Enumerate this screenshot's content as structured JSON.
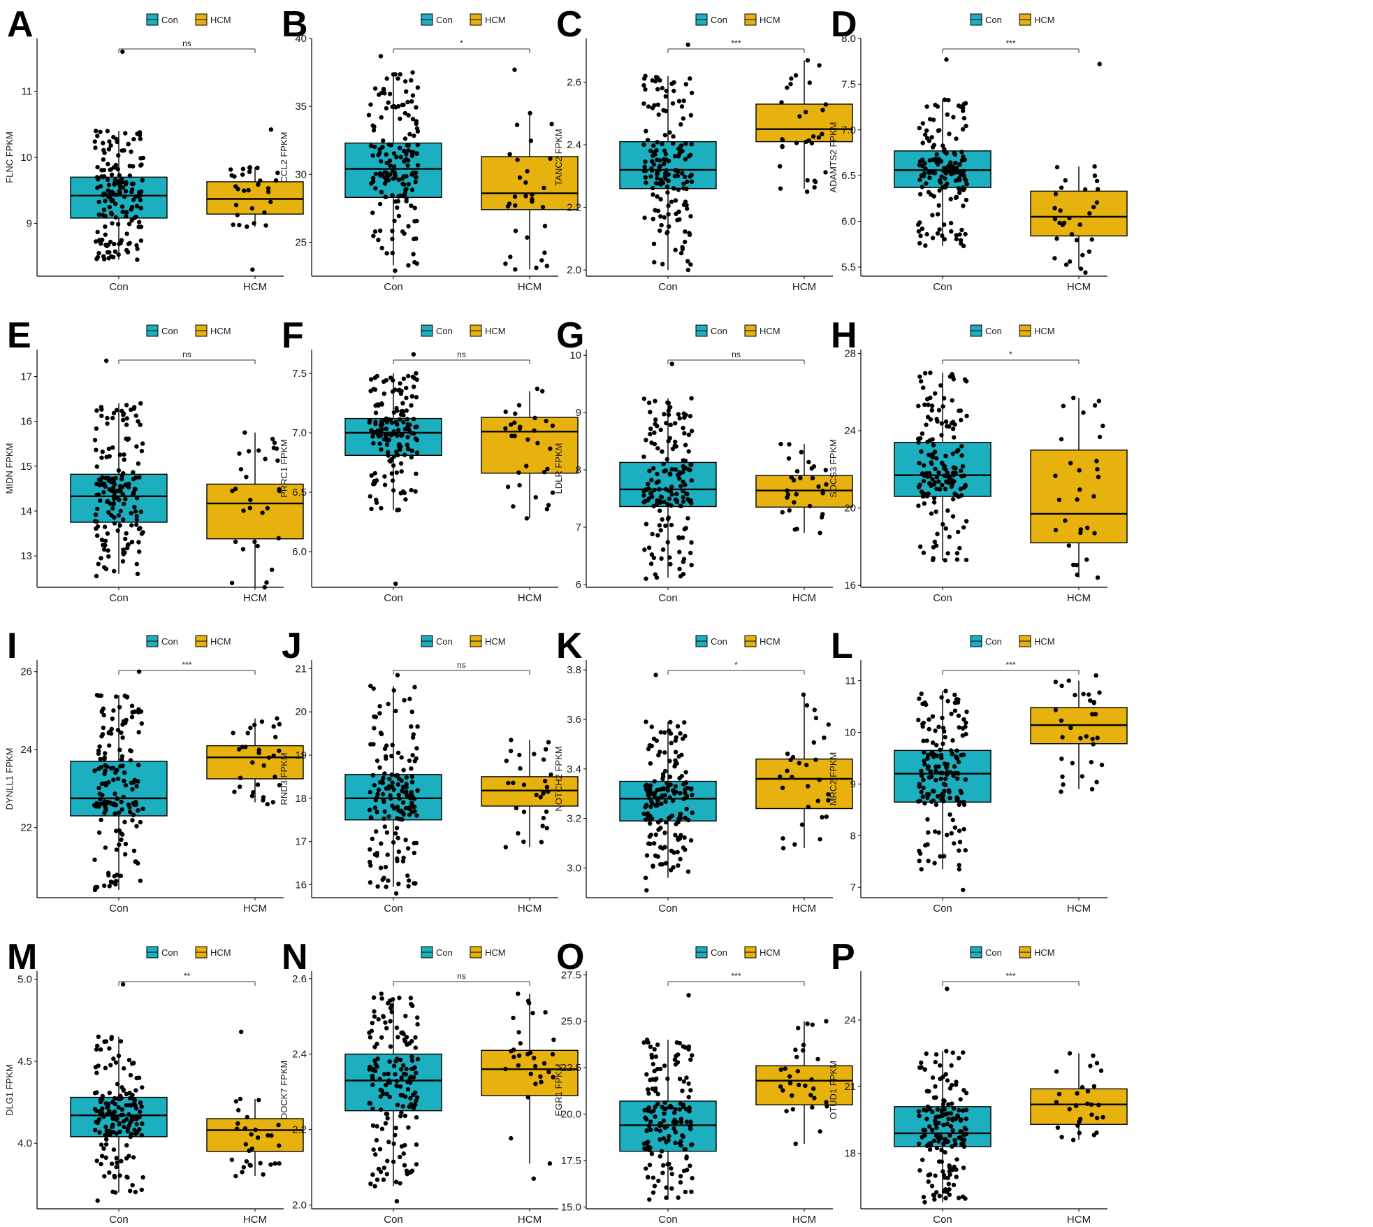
{
  "legend": [
    {
      "name": "Con",
      "color": "#1BAFBF"
    },
    {
      "name": "HCM",
      "color": "#E8B20E"
    }
  ],
  "categories": [
    "Con",
    "HCM"
  ],
  "chart_data": [
    {
      "panel": "A",
      "type": "box",
      "ylabel": "FLNC FPKM",
      "ylim": [
        8.2,
        11.8
      ],
      "yticks": [
        9,
        10,
        11
      ],
      "significance": "ns",
      "categories": [
        "Con",
        "HCM"
      ],
      "series": [
        {
          "name": "Con",
          "q1": 9.08,
          "median": 9.42,
          "q3": 9.7,
          "whisker_low": 8.45,
          "whisker_high": 10.4,
          "n": 160,
          "min": 8.45,
          "max": 11.6
        },
        {
          "name": "HCM",
          "q1": 9.14,
          "median": 9.37,
          "q3": 9.63,
          "whisker_low": 8.95,
          "whisker_high": 9.85,
          "n": 28,
          "min": 8.3,
          "max": 10.42
        }
      ]
    },
    {
      "panel": "B",
      "type": "box",
      "ylabel": "CCL2 FPKM",
      "ylim": [
        22.5,
        40
      ],
      "yticks": [
        25,
        30,
        35,
        40
      ],
      "significance": "*",
      "categories": [
        "Con",
        "HCM"
      ],
      "series": [
        {
          "name": "Con",
          "q1": 28.3,
          "median": 30.4,
          "q3": 32.3,
          "whisker_low": 23.3,
          "whisker_high": 37.5,
          "n": 160,
          "min": 22.9,
          "max": 38.7
        },
        {
          "name": "HCM",
          "q1": 27.4,
          "median": 28.6,
          "q3": 31.3,
          "whisker_low": 23.0,
          "whisker_high": 34.5,
          "n": 28,
          "min": 23.0,
          "max": 37.7
        }
      ]
    },
    {
      "panel": "C",
      "type": "box",
      "ylabel": "TANC2 FPKM",
      "ylim": [
        1.98,
        2.74
      ],
      "yticks": [
        2.0,
        2.2,
        2.4,
        2.6
      ],
      "significance": "***",
      "categories": [
        "Con",
        "HCM"
      ],
      "series": [
        {
          "name": "Con",
          "q1": 2.26,
          "median": 2.32,
          "q3": 2.41,
          "whisker_low": 2.0,
          "whisker_high": 2.62,
          "n": 160,
          "min": 2.0,
          "max": 2.72
        },
        {
          "name": "HCM",
          "q1": 2.41,
          "median": 2.45,
          "q3": 2.53,
          "whisker_low": 2.26,
          "whisker_high": 2.67,
          "n": 28,
          "min": 2.25,
          "max": 2.67
        }
      ]
    },
    {
      "panel": "D",
      "type": "box",
      "ylabel": "ADAMTS2 FPKM",
      "ylim": [
        5.4,
        8.0
      ],
      "yticks": [
        5.5,
        6.0,
        6.5,
        7.0,
        7.5,
        8.0
      ],
      "significance": "***",
      "categories": [
        "Con",
        "HCM"
      ],
      "series": [
        {
          "name": "Con",
          "q1": 6.37,
          "median": 6.56,
          "q3": 6.77,
          "whisker_low": 5.73,
          "whisker_high": 7.33,
          "n": 160,
          "min": 5.73,
          "max": 7.77
        },
        {
          "name": "HCM",
          "q1": 5.84,
          "median": 6.05,
          "q3": 6.33,
          "whisker_low": 5.48,
          "whisker_high": 6.6,
          "n": 28,
          "min": 5.44,
          "max": 7.72
        }
      ]
    },
    {
      "panel": "E",
      "type": "box",
      "ylabel": "MIDN FPKM",
      "ylim": [
        12.3,
        17.6
      ],
      "yticks": [
        13,
        14,
        15,
        16,
        17
      ],
      "significance": "ns",
      "categories": [
        "Con",
        "HCM"
      ],
      "series": [
        {
          "name": "Con",
          "q1": 13.75,
          "median": 14.33,
          "q3": 14.82,
          "whisker_low": 12.6,
          "whisker_high": 16.4,
          "n": 160,
          "min": 12.55,
          "max": 17.35
        },
        {
          "name": "HCM",
          "q1": 13.38,
          "median": 14.17,
          "q3": 14.6,
          "whisker_low": 12.3,
          "whisker_high": 15.75,
          "n": 28,
          "min": 12.3,
          "max": 15.75
        }
      ]
    },
    {
      "panel": "F",
      "type": "box",
      "ylabel": "PRRC1 FPKM",
      "ylim": [
        5.7,
        7.7
      ],
      "yticks": [
        6.0,
        6.5,
        7.0,
        7.5
      ],
      "significance": "ns",
      "categories": [
        "Con",
        "HCM"
      ],
      "series": [
        {
          "name": "Con",
          "q1": 6.81,
          "median": 7.0,
          "q3": 7.12,
          "whisker_low": 6.35,
          "whisker_high": 7.5,
          "n": 160,
          "min": 5.73,
          "max": 7.66
        },
        {
          "name": "HCM",
          "q1": 6.66,
          "median": 7.01,
          "q3": 7.13,
          "whisker_low": 6.28,
          "whisker_high": 7.35,
          "n": 28,
          "min": 6.28,
          "max": 7.37
        }
      ]
    },
    {
      "panel": "G",
      "type": "box",
      "ylabel": "LDLR FPKM",
      "ylim": [
        5.95,
        10.1
      ],
      "yticks": [
        6,
        7,
        8,
        9,
        10
      ],
      "significance": "ns",
      "categories": [
        "Con",
        "HCM"
      ],
      "series": [
        {
          "name": "Con",
          "q1": 7.36,
          "median": 7.66,
          "q3": 8.13,
          "whisker_low": 6.12,
          "whisker_high": 9.25,
          "n": 160,
          "min": 6.1,
          "max": 9.85
        },
        {
          "name": "HCM",
          "q1": 7.35,
          "median": 7.64,
          "q3": 7.9,
          "whisker_low": 6.9,
          "whisker_high": 8.45,
          "n": 28,
          "min": 6.9,
          "max": 8.45
        }
      ]
    },
    {
      "panel": "H",
      "type": "box",
      "ylabel": "SOCS3 FPKM",
      "ylim": [
        15.9,
        28.2
      ],
      "yticks": [
        16,
        20,
        24,
        28
      ],
      "significance": "*",
      "categories": [
        "Con",
        "HCM"
      ],
      "series": [
        {
          "name": "Con",
          "q1": 20.6,
          "median": 21.7,
          "q3": 23.4,
          "whisker_low": 17.3,
          "whisker_high": 27.0,
          "n": 160,
          "min": 17.3,
          "max": 27.0
        },
        {
          "name": "HCM",
          "q1": 18.2,
          "median": 19.7,
          "q3": 23.0,
          "whisker_low": 16.4,
          "whisker_high": 25.7,
          "n": 28,
          "min": 16.4,
          "max": 25.7
        }
      ]
    },
    {
      "panel": "I",
      "type": "box",
      "ylabel": "DYNLL1 FPKM",
      "ylim": [
        20.2,
        26.3
      ],
      "yticks": [
        22,
        24,
        26
      ],
      "significance": "***",
      "categories": [
        "Con",
        "HCM"
      ],
      "series": [
        {
          "name": "Con",
          "q1": 22.3,
          "median": 22.75,
          "q3": 23.7,
          "whisker_low": 20.4,
          "whisker_high": 25.4,
          "n": 160,
          "min": 20.4,
          "max": 26.0
        },
        {
          "name": "HCM",
          "q1": 23.25,
          "median": 23.8,
          "q3": 24.1,
          "whisker_low": 22.65,
          "whisker_high": 24.8,
          "n": 28,
          "min": 22.6,
          "max": 24.8
        }
      ]
    },
    {
      "panel": "J",
      "type": "box",
      "ylabel": "RND3 FPKM",
      "ylim": [
        15.7,
        21.2
      ],
      "yticks": [
        16,
        17,
        18,
        19,
        20,
        21
      ],
      "significance": "ns",
      "categories": [
        "Con",
        "HCM"
      ],
      "series": [
        {
          "name": "Con",
          "q1": 17.5,
          "median": 18.0,
          "q3": 18.55,
          "whisker_low": 15.95,
          "whisker_high": 20.6,
          "n": 160,
          "min": 15.8,
          "max": 20.85
        },
        {
          "name": "HCM",
          "q1": 17.82,
          "median": 18.18,
          "q3": 18.5,
          "whisker_low": 16.87,
          "whisker_high": 19.35,
          "n": 28,
          "min": 16.87,
          "max": 19.35
        }
      ]
    },
    {
      "panel": "K",
      "type": "box",
      "ylabel": "NOTCH2 FPKM",
      "ylim": [
        2.88,
        3.84
      ],
      "yticks": [
        3.0,
        3.2,
        3.4,
        3.6,
        3.8
      ],
      "significance": "*",
      "categories": [
        "Con",
        "HCM"
      ],
      "series": [
        {
          "name": "Con",
          "q1": 3.19,
          "median": 3.28,
          "q3": 3.35,
          "whisker_low": 2.96,
          "whisker_high": 3.59,
          "n": 160,
          "min": 2.91,
          "max": 3.78
        },
        {
          "name": "HCM",
          "q1": 3.24,
          "median": 3.36,
          "q3": 3.44,
          "whisker_low": 3.08,
          "whisker_high": 3.7,
          "n": 28,
          "min": 3.08,
          "max": 3.7
        }
      ]
    },
    {
      "panel": "L",
      "type": "box",
      "ylabel": "MRC2 FPKM",
      "ylim": [
        6.8,
        11.4
      ],
      "yticks": [
        7,
        8,
        9,
        10,
        11
      ],
      "significance": "***",
      "categories": [
        "Con",
        "HCM"
      ],
      "series": [
        {
          "name": "Con",
          "q1": 8.65,
          "median": 9.2,
          "q3": 9.65,
          "whisker_low": 7.35,
          "whisker_high": 10.8,
          "n": 160,
          "min": 6.95,
          "max": 10.8
        },
        {
          "name": "HCM",
          "q1": 9.78,
          "median": 10.14,
          "q3": 10.48,
          "whisker_low": 8.9,
          "whisker_high": 11.0,
          "n": 28,
          "min": 8.85,
          "max": 11.1
        }
      ]
    },
    {
      "panel": "M",
      "type": "box",
      "ylabel": "DLG1 FPKM",
      "ylim": [
        3.6,
        5.05
      ],
      "yticks": [
        4.0,
        4.5,
        5.0
      ],
      "significance": "**",
      "categories": [
        "Con",
        "HCM"
      ],
      "series": [
        {
          "name": "Con",
          "q1": 4.04,
          "median": 4.17,
          "q3": 4.28,
          "whisker_low": 3.7,
          "whisker_high": 4.65,
          "n": 160,
          "min": 3.65,
          "max": 4.97
        },
        {
          "name": "HCM",
          "q1": 3.95,
          "median": 4.08,
          "q3": 4.15,
          "whisker_low": 3.8,
          "whisker_high": 4.27,
          "n": 28,
          "min": 3.8,
          "max": 4.68
        }
      ]
    },
    {
      "panel": "N",
      "type": "box",
      "ylabel": "DOCK7 FPKM",
      "ylim": [
        1.99,
        2.62
      ],
      "yticks": [
        2.0,
        2.2,
        2.4,
        2.6
      ],
      "significance": "ns",
      "categories": [
        "Con",
        "HCM"
      ],
      "series": [
        {
          "name": "Con",
          "q1": 2.25,
          "median": 2.33,
          "q3": 2.4,
          "whisker_low": 2.05,
          "whisker_high": 2.55,
          "n": 160,
          "min": 2.01,
          "max": 2.56
        },
        {
          "name": "HCM",
          "q1": 2.29,
          "median": 2.36,
          "q3": 2.41,
          "whisker_low": 2.11,
          "whisker_high": 2.56,
          "n": 28,
          "min": 2.07,
          "max": 2.56
        }
      ]
    },
    {
      "panel": "O",
      "type": "box",
      "ylabel": "EGR1 FPKM",
      "ylim": [
        14.9,
        27.7
      ],
      "yticks": [
        15.0,
        17.5,
        20.0,
        22.5,
        25.0,
        27.5
      ],
      "significance": "***",
      "categories": [
        "Con",
        "HCM"
      ],
      "series": [
        {
          "name": "Con",
          "q1": 18.0,
          "median": 19.4,
          "q3": 20.7,
          "whisker_low": 15.4,
          "whisker_high": 24.0,
          "n": 160,
          "min": 15.4,
          "max": 26.4
        },
        {
          "name": "HCM",
          "q1": 20.5,
          "median": 21.8,
          "q3": 22.6,
          "whisker_low": 18.4,
          "whisker_high": 25.0,
          "n": 28,
          "min": 18.4,
          "max": 25.0
        }
      ]
    },
    {
      "panel": "P",
      "type": "box",
      "ylabel": "OTUD1 FPKM",
      "ylim": [
        15.5,
        26.2
      ],
      "yticks": [
        18,
        21,
        24
      ],
      "significance": "***",
      "categories": [
        "Con",
        "HCM"
      ],
      "series": [
        {
          "name": "Con",
          "q1": 18.3,
          "median": 18.9,
          "q3": 20.1,
          "whisker_low": 15.8,
          "whisker_high": 22.6,
          "n": 160,
          "min": 15.8,
          "max": 25.4
        },
        {
          "name": "HCM",
          "q1": 19.3,
          "median": 20.2,
          "q3": 20.9,
          "whisker_low": 18.6,
          "whisker_high": 22.5,
          "n": 28,
          "min": 18.6,
          "max": 22.5
        }
      ]
    }
  ]
}
